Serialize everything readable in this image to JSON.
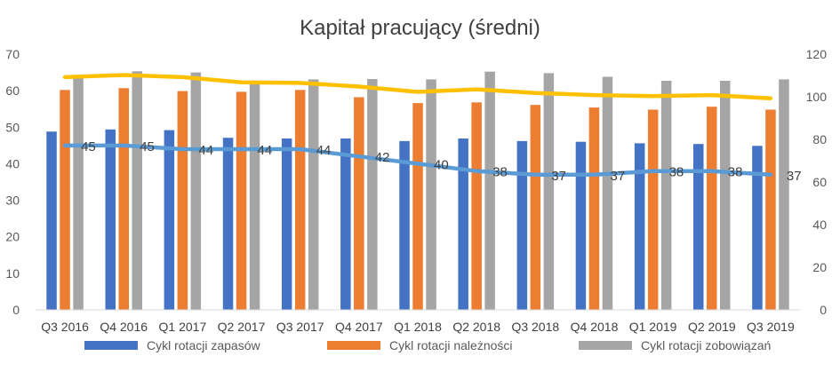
{
  "chart_data": {
    "type": "bar",
    "title": "Kapitał pracujący (średni)",
    "categories": [
      "Q3 2016",
      "Q4 2016",
      "Q1 2017",
      "Q2 2017",
      "Q3 2017",
      "Q4 2017",
      "Q1 2018",
      "Q2 2018",
      "Q3 2018",
      "Q4 2018",
      "Q1 2019",
      "Q2 2019",
      "Q3 2019"
    ],
    "series": [
      {
        "name": "Cykl rotacji zapasów",
        "type": "bar",
        "axis": "left",
        "color": "#4472C4",
        "values": [
          48.8,
          49.4,
          49.2,
          47.1,
          46.9,
          46.9,
          46.2,
          46.9,
          46.2,
          46.0,
          45.6,
          45.4,
          44.9
        ]
      },
      {
        "name": "Cykl rotacji należności",
        "type": "bar",
        "axis": "left",
        "color": "#ED7D31",
        "values": [
          60.2,
          60.7,
          59.9,
          59.7,
          60.2,
          58.2,
          56.6,
          56.8,
          56.1,
          55.4,
          54.8,
          55.6,
          54.8
        ]
      },
      {
        "name": "Cykl rotacji zobowiązań",
        "type": "bar",
        "axis": "left",
        "color": "#A5A5A5",
        "values": [
          63.7,
          65.3,
          65.0,
          62.6,
          63.1,
          63.2,
          63.1,
          65.2,
          64.8,
          63.8,
          62.7,
          62.7,
          63.1
        ]
      },
      {
        "type": "line",
        "axis": "right",
        "color": "#FFC000",
        "values": [
          109.2,
          110.2,
          109.2,
          106.8,
          106.5,
          104.8,
          102.3,
          103.5,
          101.8,
          100.8,
          100.3,
          100.8,
          99.3
        ]
      },
      {
        "type": "line",
        "axis": "left",
        "color": "#5B9BD5",
        "values": [
          45,
          45,
          44,
          44,
          44,
          42,
          40,
          38,
          37,
          37,
          38,
          38,
          37
        ],
        "labels": [
          "45",
          "45",
          "44",
          "44",
          "44",
          "42",
          "40",
          "38",
          "37",
          "37",
          "38",
          "38",
          "37"
        ]
      }
    ],
    "y_left": {
      "min": 0,
      "max": 70,
      "step": 10,
      "ticks": [
        "0",
        "10",
        "20",
        "30",
        "40",
        "50",
        "60",
        "70"
      ]
    },
    "y_right": {
      "min": 0,
      "max": 120,
      "step": 20,
      "ticks": [
        "0",
        "20",
        "40",
        "60",
        "80",
        "100",
        "120"
      ]
    },
    "grid": false,
    "legend": "bottom"
  }
}
